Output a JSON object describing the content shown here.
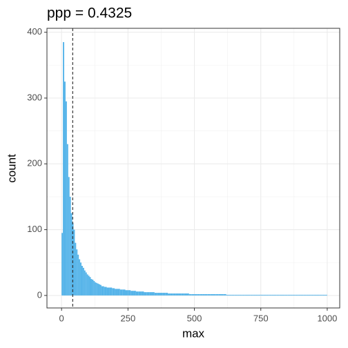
{
  "chart_data": {
    "type": "histogram",
    "title": "ppp = 0.4325",
    "x_label": "max",
    "y_label": "count",
    "bins": [
      0,
      5,
      10,
      15,
      20,
      25,
      30,
      35,
      40,
      45,
      50,
      55,
      60,
      65,
      70,
      75,
      80,
      85,
      90,
      95,
      100,
      105,
      110,
      115,
      120,
      125,
      130,
      135,
      140,
      145,
      150,
      160,
      170,
      180,
      190,
      200,
      210,
      220,
      230,
      240,
      250,
      260,
      270,
      280,
      290,
      300,
      310,
      320,
      330,
      340,
      350,
      360,
      370,
      380,
      390,
      400,
      410,
      420,
      430,
      440,
      450,
      460,
      470,
      480,
      490,
      500,
      510,
      520,
      530,
      540,
      550,
      560,
      570,
      580,
      590,
      600,
      610,
      620,
      630,
      640,
      650,
      660,
      670,
      680,
      690,
      700,
      710,
      720,
      730,
      740,
      750,
      760,
      770,
      780,
      790,
      800,
      810,
      820,
      830,
      840,
      850,
      860,
      870,
      880,
      890,
      900,
      910,
      920,
      930,
      940,
      950,
      960,
      970,
      980,
      990,
      1000
    ],
    "counts": [
      95,
      385,
      325,
      295,
      230,
      180,
      150,
      125,
      110,
      100,
      80,
      70,
      62,
      55,
      50,
      45,
      42,
      38,
      35,
      32,
      30,
      28,
      25,
      24,
      22,
      20,
      19,
      18,
      17,
      16,
      14,
      13,
      12,
      12,
      11,
      10,
      10,
      9,
      9,
      8,
      8,
      7,
      7,
      6,
      6,
      6,
      5,
      5,
      5,
      5,
      4,
      4,
      4,
      4,
      4,
      3,
      3,
      3,
      3,
      3,
      3,
      3,
      3,
      2,
      2,
      2,
      2,
      2,
      2,
      2,
      2,
      2,
      2,
      2,
      2,
      2,
      2,
      1,
      1,
      1,
      1,
      1,
      1,
      1,
      1,
      1,
      1,
      1,
      1,
      1,
      1,
      1,
      1,
      1,
      1,
      1,
      1,
      1,
      1,
      1,
      1,
      1,
      1,
      1,
      1,
      1,
      1,
      1,
      1,
      1,
      1,
      1,
      1,
      1,
      1
    ],
    "color": "#56B4E9",
    "vline": 42,
    "xlim": [
      -55,
      1047
    ],
    "ylim": [
      -19,
      406
    ],
    "xticks": [
      0,
      250,
      500,
      750,
      1000
    ],
    "yticks": [
      0,
      100,
      200,
      300,
      400
    ],
    "grid": true
  }
}
